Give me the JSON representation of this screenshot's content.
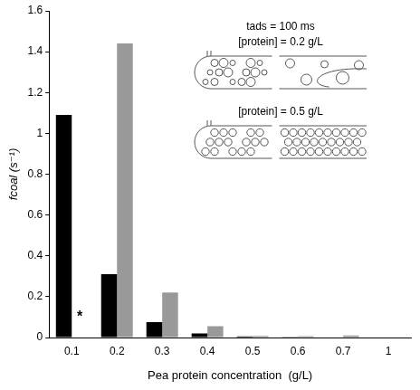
{
  "chart_data": {
    "type": "bar",
    "y_label": "fcoal (s⁻¹)",
    "x_label": "Pea protein concentration  (g/L)",
    "categories": [
      "0.1",
      "0.2",
      "0.3",
      "0.4",
      "0.5",
      "0.6",
      "0.7",
      "1"
    ],
    "series": [
      {
        "color": "#000000",
        "values": [
          1.09,
          0.31,
          0.075,
          0.02,
          0.005,
          0.003,
          0.002,
          0
        ]
      },
      {
        "color": "#999999",
        "values": [
          null,
          1.44,
          0.22,
          0.055,
          0.008,
          0.007,
          0.01,
          0.002
        ]
      }
    ],
    "ylim": [
      0,
      1.6
    ],
    "yticks": [
      0,
      0.2,
      0.4,
      0.6,
      0.8,
      1,
      1.2,
      1.4,
      1.6
    ],
    "grid": false,
    "annotations": [
      {
        "text": "*",
        "x": "0.1",
        "y": 0.1
      },
      {
        "text": "tads = 100 ms"
      },
      {
        "text": "[protein] = 0.2 g/L"
      },
      {
        "text": "[protein] = 0.5 g/L"
      }
    ]
  }
}
